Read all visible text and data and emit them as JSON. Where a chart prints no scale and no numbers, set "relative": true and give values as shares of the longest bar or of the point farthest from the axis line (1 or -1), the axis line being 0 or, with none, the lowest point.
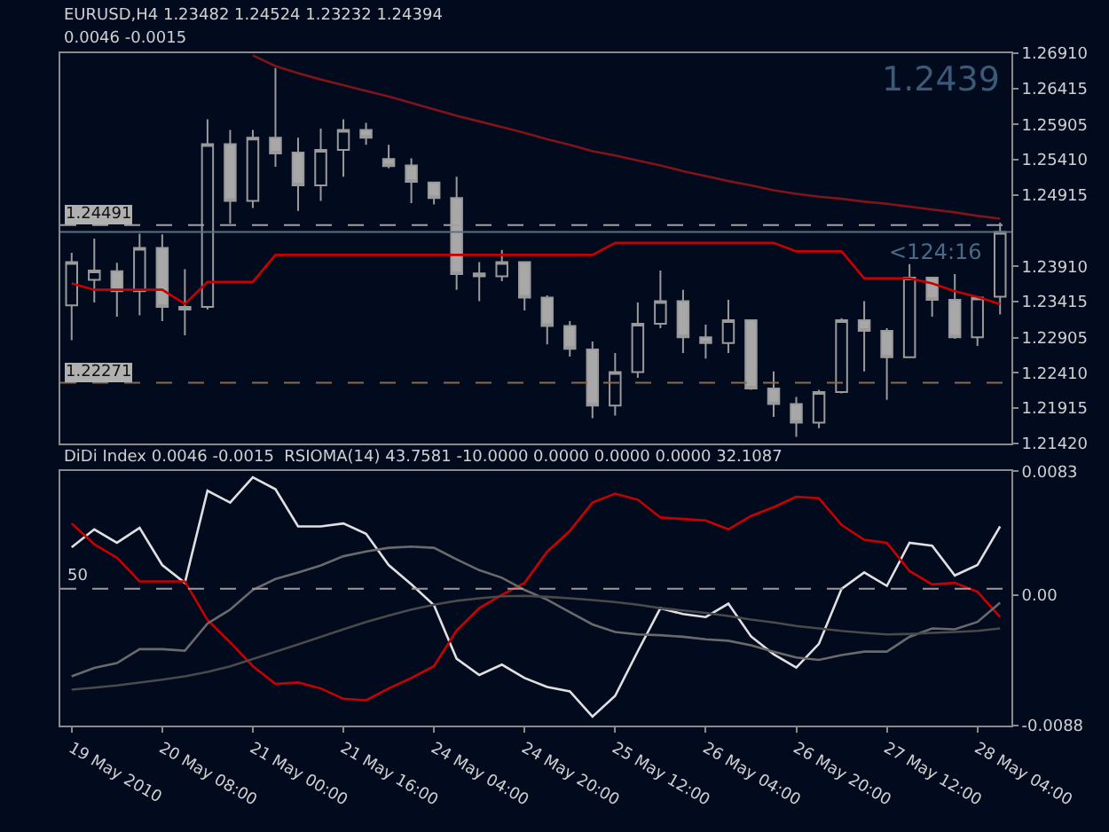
{
  "chart_data": [
    {
      "type": "candlestick",
      "title": "EURUSD,H4 1.23482 1.24524 1.23232 1.24394",
      "annotations": [
        "0.0046 -0.0015",
        "1.2439",
        "<124:16"
      ],
      "categories": [
        null,
        null,
        null,
        null,
        null,
        null,
        null,
        null,
        null,
        null,
        null,
        null,
        null,
        null,
        null,
        null,
        null,
        null,
        null,
        null,
        null,
        null,
        null,
        null,
        null,
        null,
        null,
        null,
        null,
        null,
        null,
        null,
        null,
        null,
        null,
        null,
        null,
        null,
        null,
        null,
        null,
        null
      ],
      "ohlc": [
        [
          1.2336,
          1.241,
          1.2287,
          1.2397
        ],
        [
          1.2372,
          1.243,
          1.234,
          1.2385
        ],
        [
          1.2384,
          1.2396,
          1.232,
          1.2356
        ],
        [
          1.2356,
          1.2437,
          1.2322,
          1.2417
        ],
        [
          1.2417,
          1.2436,
          1.2314,
          1.2334
        ],
        [
          1.2334,
          1.2387,
          1.2294,
          1.233
        ],
        [
          1.2334,
          1.2598,
          1.233,
          1.2563
        ],
        [
          1.2563,
          1.2583,
          1.2451,
          1.2483
        ],
        [
          1.2483,
          1.2583,
          1.2473,
          1.2572
        ],
        [
          1.2572,
          1.267,
          1.2531,
          1.255
        ],
        [
          1.2551,
          1.2572,
          1.2469,
          1.2505
        ],
        [
          1.2505,
          1.2585,
          1.2483,
          1.2555
        ],
        [
          1.2555,
          1.2598,
          1.2517,
          1.2583
        ],
        [
          1.2583,
          1.2593,
          1.2562,
          1.2572
        ],
        [
          1.2542,
          1.2562,
          1.2529,
          1.2532
        ],
        [
          1.2533,
          1.2543,
          1.248,
          1.251
        ],
        [
          1.2509,
          1.251,
          1.2478,
          1.2487
        ],
        [
          1.2487,
          1.2517,
          1.2358,
          1.238
        ],
        [
          1.2381,
          1.2397,
          1.2342,
          1.2377
        ],
        [
          1.2377,
          1.2414,
          1.237,
          1.2397
        ],
        [
          1.2397,
          1.2397,
          1.2329,
          1.2347
        ],
        [
          1.2347,
          1.235,
          1.2281,
          1.2307
        ],
        [
          1.2307,
          1.2314,
          1.2264,
          1.2275
        ],
        [
          1.2274,
          1.2285,
          1.2177,
          1.2195
        ],
        [
          1.2195,
          1.2269,
          1.2181,
          1.2242
        ],
        [
          1.2242,
          1.234,
          1.2234,
          1.231
        ],
        [
          1.231,
          1.2385,
          1.2304,
          1.2342
        ],
        [
          1.2342,
          1.2358,
          1.2269,
          1.2291
        ],
        [
          1.2291,
          1.2309,
          1.2261,
          1.2283
        ],
        [
          1.2283,
          1.2344,
          1.2269,
          1.2315
        ],
        [
          1.2315,
          1.2315,
          1.2217,
          1.2219
        ],
        [
          1.2219,
          1.2243,
          1.2179,
          1.2197
        ],
        [
          1.2197,
          1.2207,
          1.2151,
          1.2171
        ],
        [
          1.2171,
          1.2217,
          1.2163,
          1.2214
        ],
        [
          1.2214,
          1.2318,
          1.2212,
          1.2315
        ],
        [
          1.2315,
          1.2342,
          1.2243,
          1.23
        ],
        [
          1.23,
          1.2304,
          1.2203,
          1.2263
        ],
        [
          1.2263,
          1.2394,
          1.2263,
          1.2375
        ],
        [
          1.2375,
          1.2375,
          1.232,
          1.2344
        ],
        [
          1.2344,
          1.238,
          1.2289,
          1.2291
        ],
        [
          1.2291,
          1.2347,
          1.2279,
          1.2347
        ],
        [
          1.23482,
          1.24524,
          1.23232,
          1.24394
        ]
      ],
      "series": [
        {
          "type": "line",
          "color": "#c80000",
          "values": [
            1.2367,
            1.2358,
            1.2358,
            1.2358,
            1.2358,
            1.2338,
            1.2369,
            1.2369,
            1.2369,
            1.2407,
            1.2407,
            1.2407,
            1.2407,
            1.2407,
            1.2407,
            1.2407,
            1.2407,
            1.2407,
            1.2407,
            1.2407,
            1.2407,
            1.2407,
            1.2407,
            1.2407,
            1.2424,
            1.2424,
            1.2424,
            1.2424,
            1.2424,
            1.2424,
            1.2424,
            1.2424,
            1.2412,
            1.2412,
            1.2412,
            1.2374,
            1.2374,
            1.2374,
            1.2367,
            1.2356,
            1.2348,
            1.2338
          ]
        },
        {
          "type": "line",
          "color": "#801418",
          "values": [
            null,
            null,
            null,
            null,
            null,
            null,
            null,
            null,
            1.2688,
            1.2673,
            1.2663,
            1.2654,
            1.2646,
            1.2638,
            1.263,
            1.2621,
            1.2612,
            1.2603,
            1.2595,
            1.2587,
            1.2579,
            1.257,
            1.2562,
            1.2553,
            1.2547,
            1.254,
            1.2533,
            1.2525,
            1.2518,
            1.2511,
            1.2505,
            1.2498,
            1.2493,
            1.2489,
            1.2486,
            1.2482,
            1.2479,
            1.2475,
            1.2471,
            1.2467,
            1.2462,
            1.2458
          ]
        }
      ],
      "ylim": [
        1.2142,
        1.2691
      ],
      "yticks": [
        {
          "value": 1.2691,
          "label": "1.26910"
        },
        1.26415,
        1.25905,
        {
          "value": 1.2541,
          "label": "1.25410"
        },
        1.24915,
        {
          "value": 1.2391,
          "label": "1.23910"
        },
        1.23415,
        1.22905,
        {
          "value": 1.2241,
          "label": "1.22410"
        },
        1.21915,
        {
          "value": 1.2142,
          "label": "1.21420"
        }
      ],
      "ref_lines": [
        {
          "axis": "y",
          "value": 1.24491,
          "label": "1.24491",
          "line_style": "dashed",
          "color": "#a0a0a0"
        },
        {
          "axis": "y",
          "value": 1.24394,
          "color": "#5a7080"
        },
        {
          "axis": "y",
          "value": 1.22271,
          "label": "1.22271",
          "line_style": "dashed",
          "color": "#8a6a4a"
        }
      ],
      "tick_labels": "y"
    },
    {
      "type": "line",
      "title": "DiDi Index 0.0046 -0.0015  RSIOMA(14) 43.7581 -10.0000 0.0000 0.0000 0.0000 32.1087",
      "categories": [
        "19 May 2010",
        null,
        null,
        null,
        "20 May 08:00",
        null,
        null,
        null,
        "21 May 00:00",
        null,
        null,
        null,
        "21 May 16:00",
        null,
        null,
        null,
        "24 May 04:00",
        null,
        null,
        null,
        "24 May 20:00",
        null,
        null,
        null,
        "25 May 12:00",
        null,
        null,
        null,
        "26 May 04:00",
        null,
        null,
        null,
        "26 May 20:00",
        null,
        null,
        null,
        "27 May 12:00",
        null,
        null,
        null,
        "28 May 04:00",
        null
      ],
      "series": [
        {
          "color": "#e0e0e0",
          "values": [
            0.0032,
            0.0044,
            0.0035,
            0.0045,
            0.002,
            0.0008,
            0.007,
            0.0062,
            0.0079,
            0.0071,
            0.0046,
            0.0046,
            0.0048,
            0.0041,
            0.002,
            0.0007,
            -0.0007,
            -0.0043,
            -0.0054,
            -0.0047,
            -0.0056,
            -0.0062,
            -0.0065,
            -0.0082,
            -0.0068,
            -0.0038,
            -0.0009,
            -0.0013,
            -0.0015,
            -0.0006,
            -0.0028,
            -0.004,
            -0.0049,
            -0.0033,
            0.0004,
            0.0015,
            0.0006,
            0.0035,
            0.0033,
            0.0013,
            0.002,
            0.0046
          ]
        },
        {
          "color": "#c80000",
          "values": [
            0.0048,
            0.0034,
            0.0025,
            0.0009,
            0.0009,
            0.0009,
            -0.0017,
            -0.0032,
            -0.0048,
            -0.006,
            -0.0059,
            -0.0063,
            -0.007,
            -0.0071,
            -0.0063,
            -0.0056,
            -0.0048,
            -0.0024,
            -0.0009,
            0.0,
            0.0008,
            0.0029,
            0.0043,
            0.0062,
            0.0068,
            0.0064,
            0.0052,
            0.0051,
            0.005,
            0.0044,
            0.0053,
            0.0059,
            0.0066,
            0.0065,
            0.0047,
            0.0037,
            0.0035,
            0.0016,
            0.0007,
            0.0008,
            0.0002,
            -0.0015
          ]
        }
      ],
      "ylim": [
        -0.0088,
        0.0083
      ],
      "yticks": [
        0.0083,
        {
          "value": 0,
          "label": "0.00"
        },
        -0.0088
      ]
    },
    {
      "type": "line",
      "relative": true,
      "tick_labels": false,
      "annotations": [
        "50"
      ],
      "categories": [
        null,
        null,
        null,
        null,
        null,
        null,
        null,
        null,
        null,
        null,
        null,
        null,
        null,
        null,
        null,
        null,
        null,
        null,
        null,
        null,
        null,
        null,
        null,
        null,
        null,
        null,
        null,
        null,
        null,
        null,
        null,
        null,
        null,
        null,
        null,
        null,
        null,
        null,
        null,
        null,
        null,
        null
      ],
      "series": [
        {
          "color": "#6a6a6a",
          "values": [
            0.275,
            0.322,
            0.349,
            0.427,
            0.427,
            0.418,
            0.57,
            0.648,
            0.758,
            0.819,
            0.855,
            0.895,
            0.946,
            0.973,
            0.993,
            1,
            0.993,
            0.929,
            0.868,
            0.826,
            0.758,
            0.703,
            0.634,
            0.565,
            0.523,
            0.509,
            0.505,
            0.496,
            0.482,
            0.474,
            0.449,
            0.413,
            0.38,
            0.367,
            0.394,
            0.413,
            0.413,
            0.496,
            0.543,
            0.538,
            0.579,
            0.686
          ]
        },
        {
          "color": "#4a4a4a",
          "values": [
            0.201,
            0.212,
            0.224,
            0.24,
            0.256,
            0.275,
            0.3,
            0.331,
            0.372,
            0.413,
            0.454,
            0.496,
            0.538,
            0.579,
            0.614,
            0.648,
            0.675,
            0.697,
            0.711,
            0.722,
            0.725,
            0.719,
            0.711,
            0.701,
            0.69,
            0.675,
            0.656,
            0.643,
            0.629,
            0.612,
            0.592,
            0.576,
            0.556,
            0.543,
            0.529,
            0.518,
            0.509,
            0.512,
            0.518,
            0.523,
            0.529,
            0.543
          ]
        }
      ],
      "ref_lines": [
        {
          "axis": "y",
          "value": 0.764,
          "line_style": "dashed",
          "color": "#9a9a9a"
        }
      ]
    }
  ]
}
